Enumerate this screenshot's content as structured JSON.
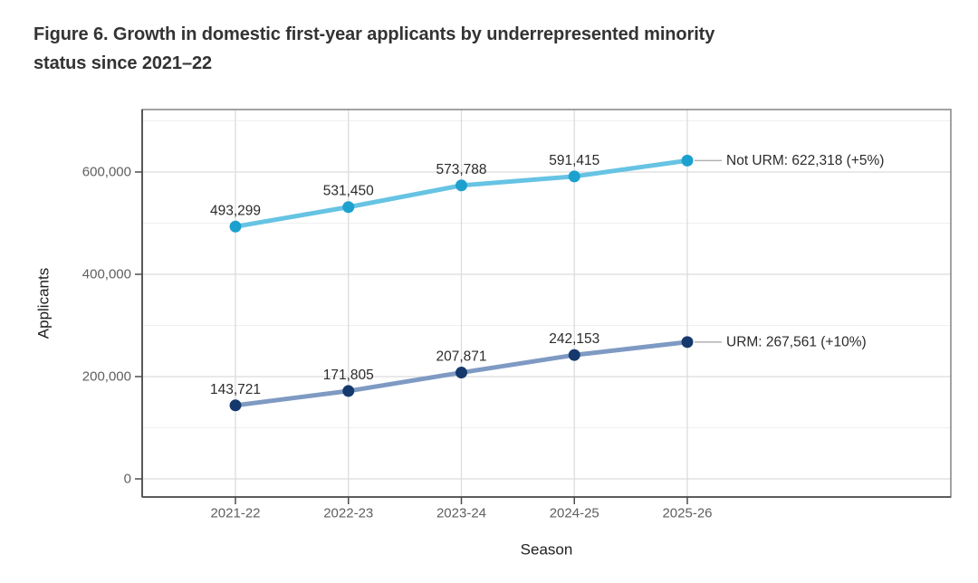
{
  "figure": {
    "title_line1": "Figure 6. Growth in domestic first-year applicants by underrepresented minority",
    "title_line2": "status since 2021–22"
  },
  "chart_data": {
    "type": "line",
    "x_categories": [
      "2021-22",
      "2022-23",
      "2023-24",
      "2024-25",
      "2025-26"
    ],
    "xlabel": "Season",
    "ylabel": "Applicants",
    "ylim": [
      0,
      721000
    ],
    "yticks": [
      0,
      200000,
      400000,
      600000
    ],
    "ytick_labels": [
      "0",
      "200,000",
      "400,000",
      "600,000"
    ],
    "yticks_minor": [
      100000,
      300000,
      500000,
      700000
    ],
    "grid": "major and minor horizontal, major vertical at each season",
    "legend": "direct end-of-line labels",
    "series": [
      {
        "name": "Not URM",
        "values": [
          493299,
          531450,
          573788,
          591415,
          622318
        ],
        "point_labels": [
          "493,299",
          "531,450",
          "573,788",
          "591,415"
        ],
        "end_label": "Not URM: 622,318 (+5%)",
        "pct_change": "+5%",
        "line_color": "#66C3E3",
        "marker_color": "#1CA1CF"
      },
      {
        "name": "URM",
        "values": [
          143721,
          171805,
          207871,
          242153,
          267561
        ],
        "point_labels": [
          "143,721",
          "171,805",
          "207,871",
          "242,153"
        ],
        "end_label": "URM: 267,561 (+10%)",
        "pct_change": "+10%",
        "line_color": "#7E9AC3",
        "marker_color": "#16396D"
      }
    ],
    "theme": {
      "background": "#ffffff",
      "panel_border": "#848484",
      "axis_line": "#4d4d4d",
      "grid_major": "#dcdcdc",
      "grid_minor": "#efefef",
      "tick_label_color": "#5f5f5f",
      "axis_title_color": "#1f1f1f",
      "data_label_color": "#2b2b2b",
      "connector_color": "#b0b0b0",
      "title_color": "#333333"
    }
  }
}
